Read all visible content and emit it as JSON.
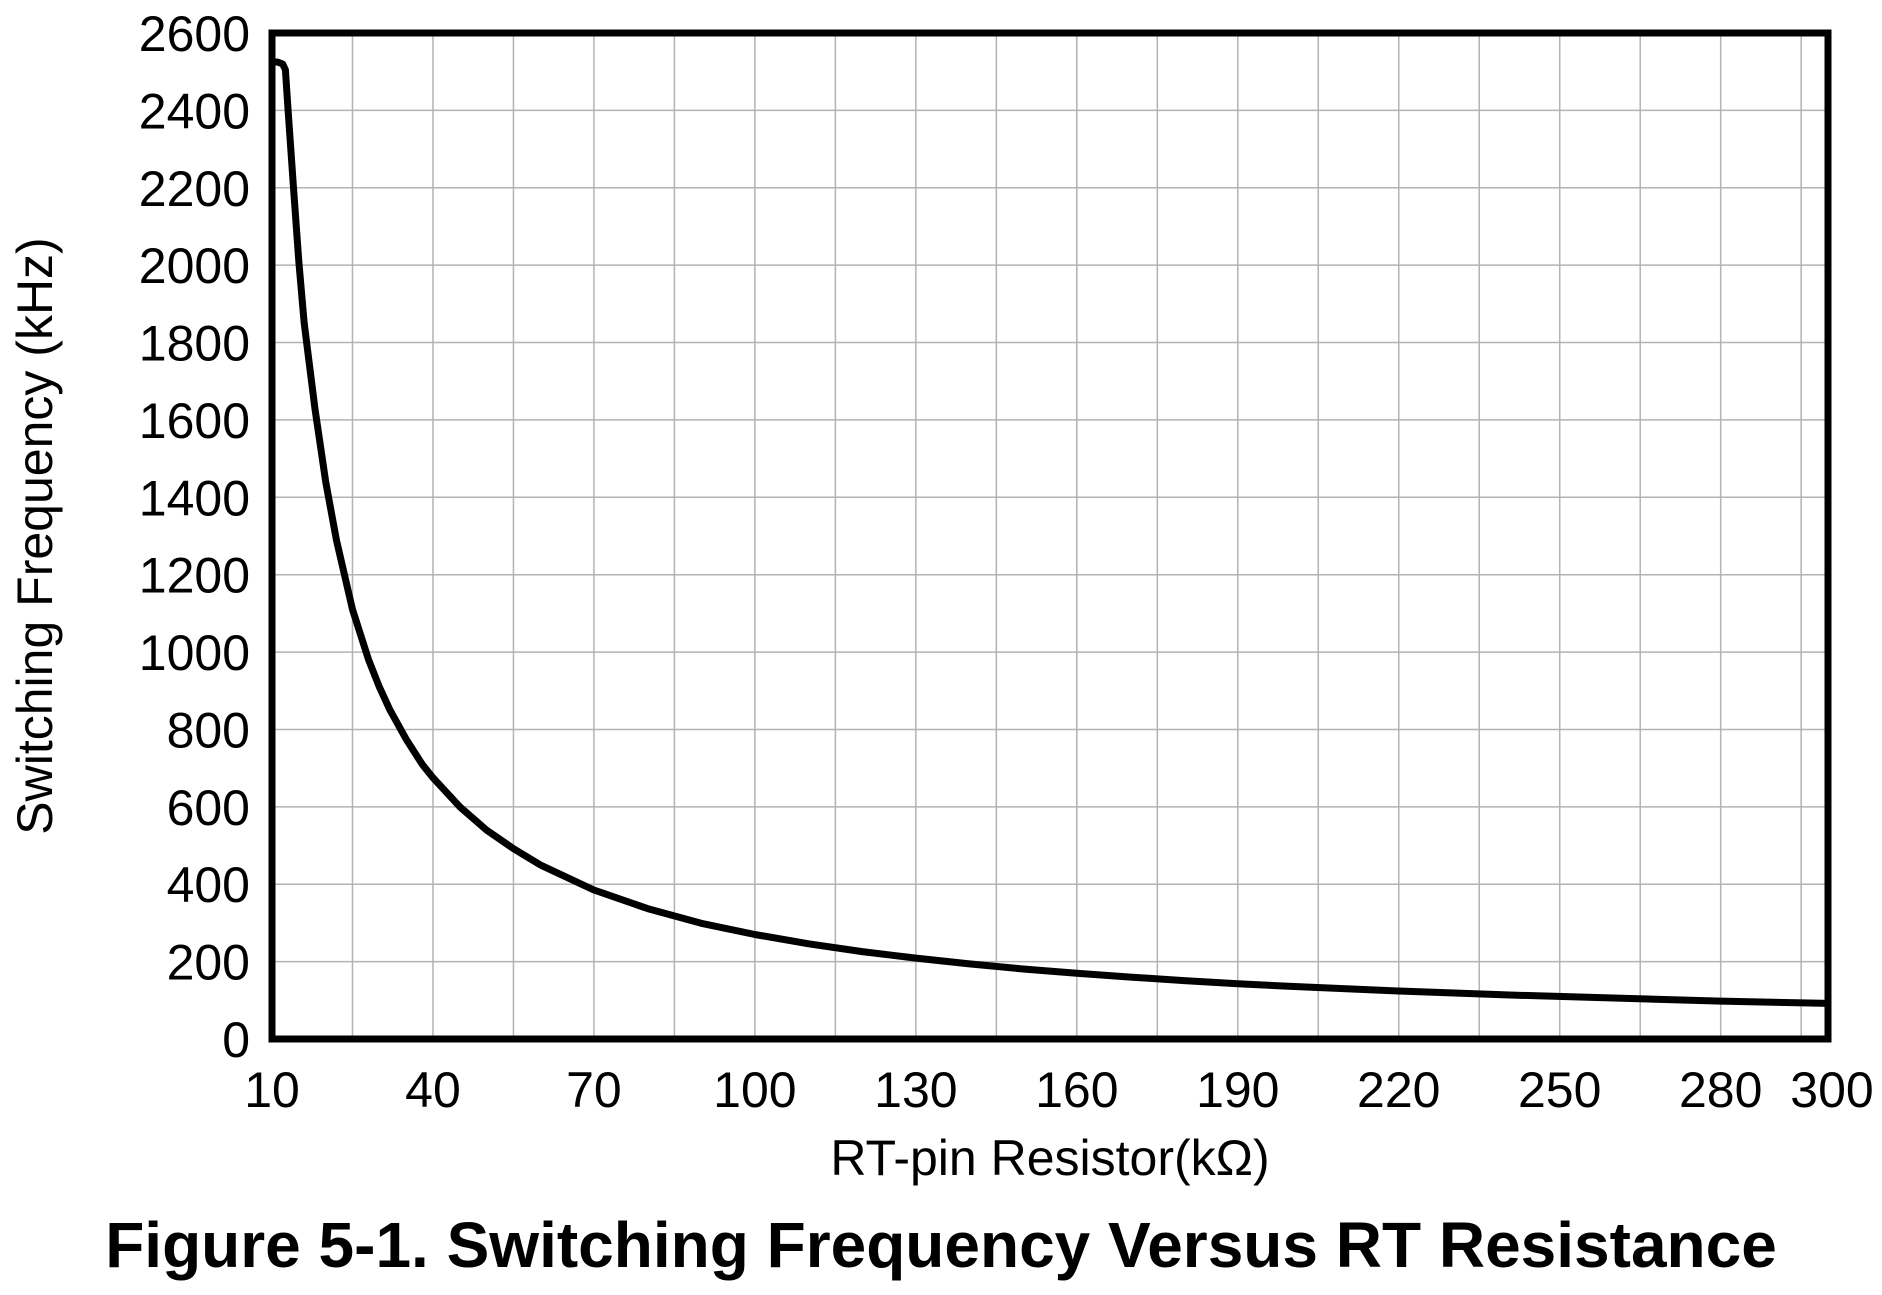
{
  "caption": "Figure 5-1. Switching Frequency Versus RT Resistance",
  "chart_data": {
    "type": "line",
    "xlabel": "RT-pin Resistor(kΩ)",
    "ylabel": "Switching Frequency (kHz)",
    "xlim": [
      10,
      300
    ],
    "ylim": [
      0,
      2600
    ],
    "xticks": [
      10,
      40,
      70,
      100,
      130,
      160,
      190,
      220,
      250,
      280,
      300
    ],
    "yticks": [
      0,
      200,
      400,
      600,
      800,
      1000,
      1200,
      1400,
      1600,
      1800,
      2000,
      2200,
      2400,
      2600
    ],
    "xgrid": [
      10,
      25,
      40,
      55,
      70,
      85,
      100,
      115,
      130,
      145,
      160,
      175,
      190,
      205,
      220,
      235,
      250,
      265,
      280,
      295,
      300
    ],
    "grid": true,
    "line_color": "#000000",
    "grid_color": "#b3b3b3",
    "series": [
      {
        "x": [
          10,
          11,
          12,
          12.5,
          13,
          14,
          15,
          16,
          18,
          20,
          22,
          25,
          28,
          30,
          32,
          35,
          38,
          40,
          45,
          50,
          55,
          60,
          70,
          80,
          90,
          100,
          110,
          120,
          130,
          140,
          150,
          160,
          170,
          180,
          190,
          200,
          220,
          240,
          260,
          280,
          300
        ],
        "y": [
          2525,
          2525,
          2520,
          2505,
          2400,
          2200,
          2010,
          1850,
          1630,
          1440,
          1290,
          1110,
          980,
          910,
          850,
          775,
          710,
          675,
          600,
          540,
          492,
          450,
          385,
          337,
          299,
          270,
          246,
          226,
          209,
          194,
          181,
          170,
          160,
          151,
          143,
          136,
          124,
          114,
          106,
          98,
          92
        ]
      }
    ]
  }
}
